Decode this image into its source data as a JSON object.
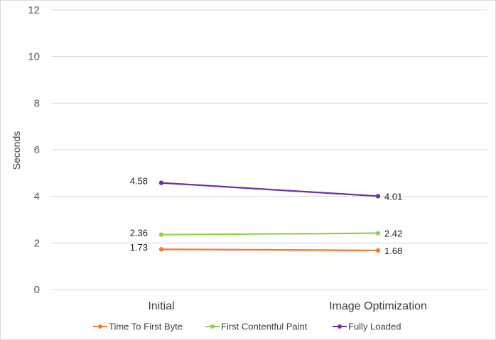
{
  "chart_data": {
    "type": "line",
    "title": "",
    "xlabel": "",
    "ylabel": "Seconds",
    "ylim": [
      0,
      12
    ],
    "yticks": [
      0,
      2,
      4,
      6,
      8,
      10,
      12
    ],
    "categories": [
      "Initial",
      "Image Optimization"
    ],
    "grid": true,
    "legend_position": "bottom",
    "series": [
      {
        "name": "Time To First Byte",
        "values": [
          1.73,
          1.68
        ],
        "labels": [
          "1.73",
          "1.68"
        ],
        "color": "#ed7d31"
      },
      {
        "name": "First Contentful Paint",
        "values": [
          2.36,
          2.42
        ],
        "labels": [
          "2.36",
          "2.42"
        ],
        "color": "#92d050"
      },
      {
        "name": "Fully Loaded",
        "values": [
          4.58,
          4.01
        ],
        "labels": [
          "4.58",
          "4.01"
        ],
        "color": "#7030a0"
      }
    ]
  }
}
